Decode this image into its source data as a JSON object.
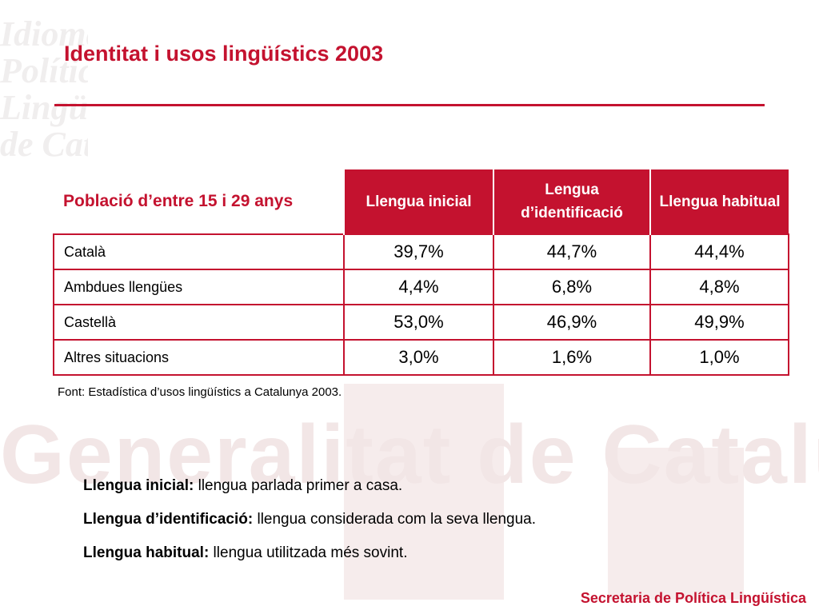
{
  "title": "Identitat i usos lingüístics 2003",
  "table": {
    "corner_label": "Població d’entre 15 i 29 anys",
    "columns": [
      "Llengua inicial",
      "Lengua d’identificació",
      "Llengua habitual"
    ],
    "rows": [
      {
        "label": "Català",
        "values": [
          "39,7%",
          "44,7%",
          "44,4%"
        ]
      },
      {
        "label": "Ambdues llengües",
        "values": [
          "4,4%",
          "6,8%",
          "4,8%"
        ]
      },
      {
        "label": "Castellà",
        "values": [
          "53,0%",
          "46,9%",
          "49,9%"
        ]
      },
      {
        "label": "Altres situacions",
        "values": [
          "3,0%",
          "1,6%",
          "1,0%"
        ]
      }
    ]
  },
  "source": "Font: Estadística d’usos lingüístics a Catalunya 2003.",
  "definitions": [
    {
      "term": "Llengua inicial:",
      "text": " llengua parlada primer a casa."
    },
    {
      "term": "Llengua d’identificació:",
      "text": " llengua considerada com la seva llengua."
    },
    {
      "term": "Llengua habitual:",
      "text": " llengua utilitzada més sovint."
    }
  ],
  "footer": "Secretaria de Política Lingüística",
  "watermark": {
    "large": "Generalitat de Catalunya",
    "left": "Idioma\nPolítica\nLingüística\nde Catalunya\n"
  },
  "colors": {
    "accent": "#c4122f"
  }
}
